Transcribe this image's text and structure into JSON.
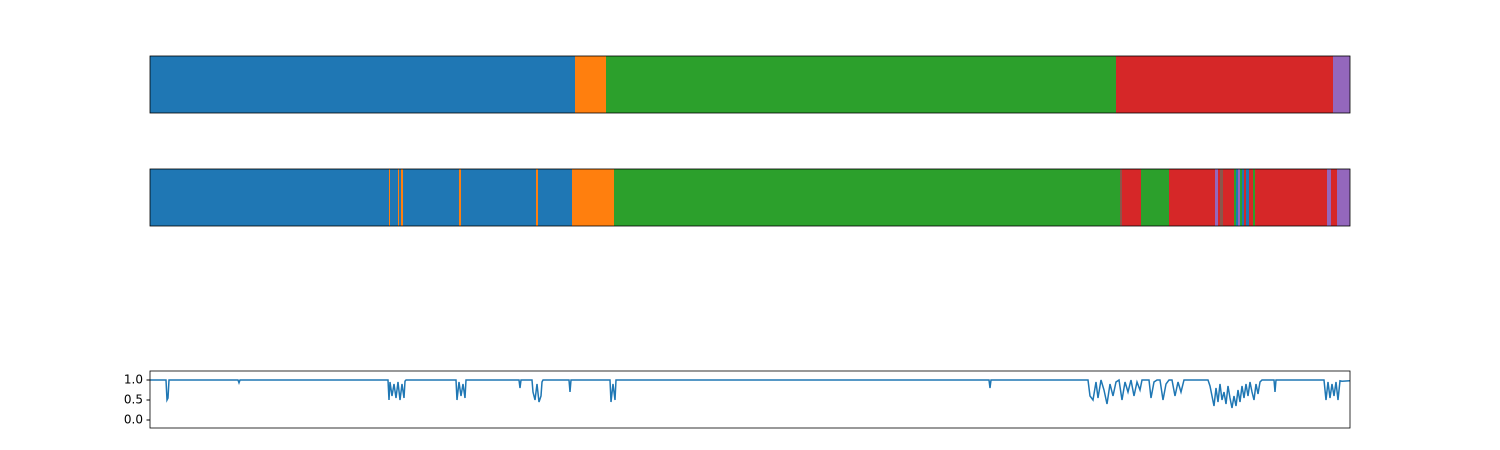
{
  "chart_data": [
    {
      "type": "segments",
      "xlim": [
        0,
        1200
      ],
      "segments": [
        {
          "start": 0,
          "end": 425,
          "color": "#1f77b4"
        },
        {
          "start": 425,
          "end": 456,
          "color": "#ff7f0e"
        },
        {
          "start": 456,
          "end": 966,
          "color": "#2ca02c"
        },
        {
          "start": 966,
          "end": 1183,
          "color": "#d62728"
        },
        {
          "start": 1183,
          "end": 1200,
          "color": "#9467bd"
        }
      ]
    },
    {
      "type": "segments",
      "xlim": [
        0,
        1200
      ],
      "segments": [
        {
          "start": 0,
          "end": 239,
          "color": "#1f77b4"
        },
        {
          "start": 239,
          "end": 240,
          "color": "#ff7f0e"
        },
        {
          "start": 240,
          "end": 248,
          "color": "#1f77b4"
        },
        {
          "start": 248,
          "end": 249,
          "color": "#ff7f0e"
        },
        {
          "start": 249,
          "end": 251,
          "color": "#1f77b4"
        },
        {
          "start": 251,
          "end": 253,
          "color": "#ff7f0e"
        },
        {
          "start": 253,
          "end": 309,
          "color": "#1f77b4"
        },
        {
          "start": 309,
          "end": 311,
          "color": "#ff7f0e"
        },
        {
          "start": 311,
          "end": 386,
          "color": "#1f77b4"
        },
        {
          "start": 386,
          "end": 388,
          "color": "#ff7f0e"
        },
        {
          "start": 388,
          "end": 422,
          "color": "#1f77b4"
        },
        {
          "start": 422,
          "end": 464,
          "color": "#ff7f0e"
        },
        {
          "start": 464,
          "end": 970,
          "color": "#2ca02c"
        },
        {
          "start": 970,
          "end": 972,
          "color": "#8c564b"
        },
        {
          "start": 972,
          "end": 991,
          "color": "#d62728"
        },
        {
          "start": 991,
          "end": 1019,
          "color": "#2ca02c"
        },
        {
          "start": 1019,
          "end": 1065,
          "color": "#d62728"
        },
        {
          "start": 1065,
          "end": 1068,
          "color": "#9467bd"
        },
        {
          "start": 1068,
          "end": 1070,
          "color": "#d62728"
        },
        {
          "start": 1070,
          "end": 1073,
          "color": "#8c564b"
        },
        {
          "start": 1073,
          "end": 1084,
          "color": "#d62728"
        },
        {
          "start": 1084,
          "end": 1086,
          "color": "#2ca02c"
        },
        {
          "start": 1086,
          "end": 1088,
          "color": "#1f77b4"
        },
        {
          "start": 1088,
          "end": 1090,
          "color": "#9467bd"
        },
        {
          "start": 1090,
          "end": 1092,
          "color": "#2ca02c"
        },
        {
          "start": 1092,
          "end": 1094,
          "color": "#1f77b4"
        },
        {
          "start": 1094,
          "end": 1096,
          "color": "#d62728"
        },
        {
          "start": 1096,
          "end": 1099,
          "color": "#1f77b4"
        },
        {
          "start": 1099,
          "end": 1103,
          "color": "#d62728"
        },
        {
          "start": 1103,
          "end": 1105,
          "color": "#2ca02c"
        },
        {
          "start": 1105,
          "end": 1177,
          "color": "#d62728"
        },
        {
          "start": 1177,
          "end": 1181,
          "color": "#9467bd"
        },
        {
          "start": 1181,
          "end": 1187,
          "color": "#d62728"
        },
        {
          "start": 1187,
          "end": 1200,
          "color": "#9467bd"
        }
      ]
    },
    {
      "type": "line",
      "xlim": [
        0,
        1200
      ],
      "ylim": [
        -0.2,
        1.225
      ],
      "yticks": [
        {
          "value": 0,
          "label": "0.0"
        },
        0.5,
        {
          "value": 1,
          "label": "1.0"
        }
      ],
      "color": "#1f77b4",
      "x": [
        0,
        16,
        17,
        18,
        19,
        20,
        88,
        89,
        90,
        238,
        239,
        240,
        242,
        244,
        246,
        248,
        250,
        252,
        254,
        255,
        256,
        306,
        307,
        309,
        311,
        313,
        315,
        316,
        369,
        370,
        371,
        382,
        383,
        385,
        387,
        389,
        391,
        392,
        393,
        419,
        420,
        421,
        460,
        461,
        463,
        465,
        466,
        839,
        840,
        841,
        938,
        940,
        943,
        946,
        948,
        951,
        954,
        957,
        960,
        963,
        966,
        969,
        972,
        975,
        978,
        981,
        984,
        987,
        990,
        992,
        999,
        1001,
        1004,
        1007,
        1010,
        1013,
        1016,
        1019,
        1022,
        1025,
        1028,
        1031,
        1034,
        1036,
        1058,
        1060,
        1062,
        1064,
        1066,
        1068,
        1070,
        1072,
        1074,
        1076,
        1078,
        1080,
        1082,
        1084,
        1086,
        1088,
        1090,
        1092,
        1094,
        1096,
        1098,
        1100,
        1102,
        1104,
        1106,
        1108,
        1110,
        1112,
        1124,
        1125,
        1126,
        1174,
        1176,
        1178,
        1180,
        1182,
        1184,
        1186,
        1188,
        1190,
        1192,
        1200
      ],
      "values": [
        1.0,
        1.0,
        0.5,
        0.55,
        1.0,
        1.0,
        1.0,
        0.93,
        1.0,
        1.0,
        0.5,
        0.95,
        0.6,
        0.9,
        0.55,
        0.95,
        0.5,
        0.9,
        0.55,
        0.97,
        1.0,
        1.0,
        0.5,
        0.95,
        0.6,
        0.9,
        0.55,
        1.0,
        1.0,
        0.8,
        1.0,
        1.0,
        0.7,
        0.5,
        0.9,
        0.45,
        0.6,
        0.95,
        1.0,
        1.0,
        0.7,
        1.0,
        1.0,
        0.45,
        0.9,
        0.5,
        1.0,
        1.0,
        0.8,
        1.0,
        1.0,
        0.6,
        0.5,
        0.95,
        0.55,
        1.0,
        0.75,
        0.4,
        0.9,
        0.6,
        0.95,
        1.0,
        0.5,
        0.95,
        0.7,
        1.0,
        0.6,
        0.95,
        0.75,
        1.0,
        1.0,
        0.55,
        0.95,
        1.0,
        1.0,
        0.5,
        0.9,
        1.0,
        1.0,
        0.6,
        0.95,
        0.7,
        1.0,
        1.0,
        1.0,
        0.85,
        0.6,
        0.35,
        0.8,
        0.45,
        0.9,
        0.5,
        0.7,
        0.4,
        0.85,
        0.55,
        0.3,
        0.6,
        0.35,
        0.75,
        0.45,
        0.85,
        0.55,
        0.9,
        0.6,
        0.95,
        0.7,
        0.5,
        0.9,
        0.65,
        0.95,
        1.0,
        1.0,
        0.7,
        1.0,
        1.0,
        0.5,
        0.95,
        0.55,
        0.9,
        0.6,
        0.95,
        0.5,
        0.98,
        0.97,
        0.98
      ]
    }
  ]
}
